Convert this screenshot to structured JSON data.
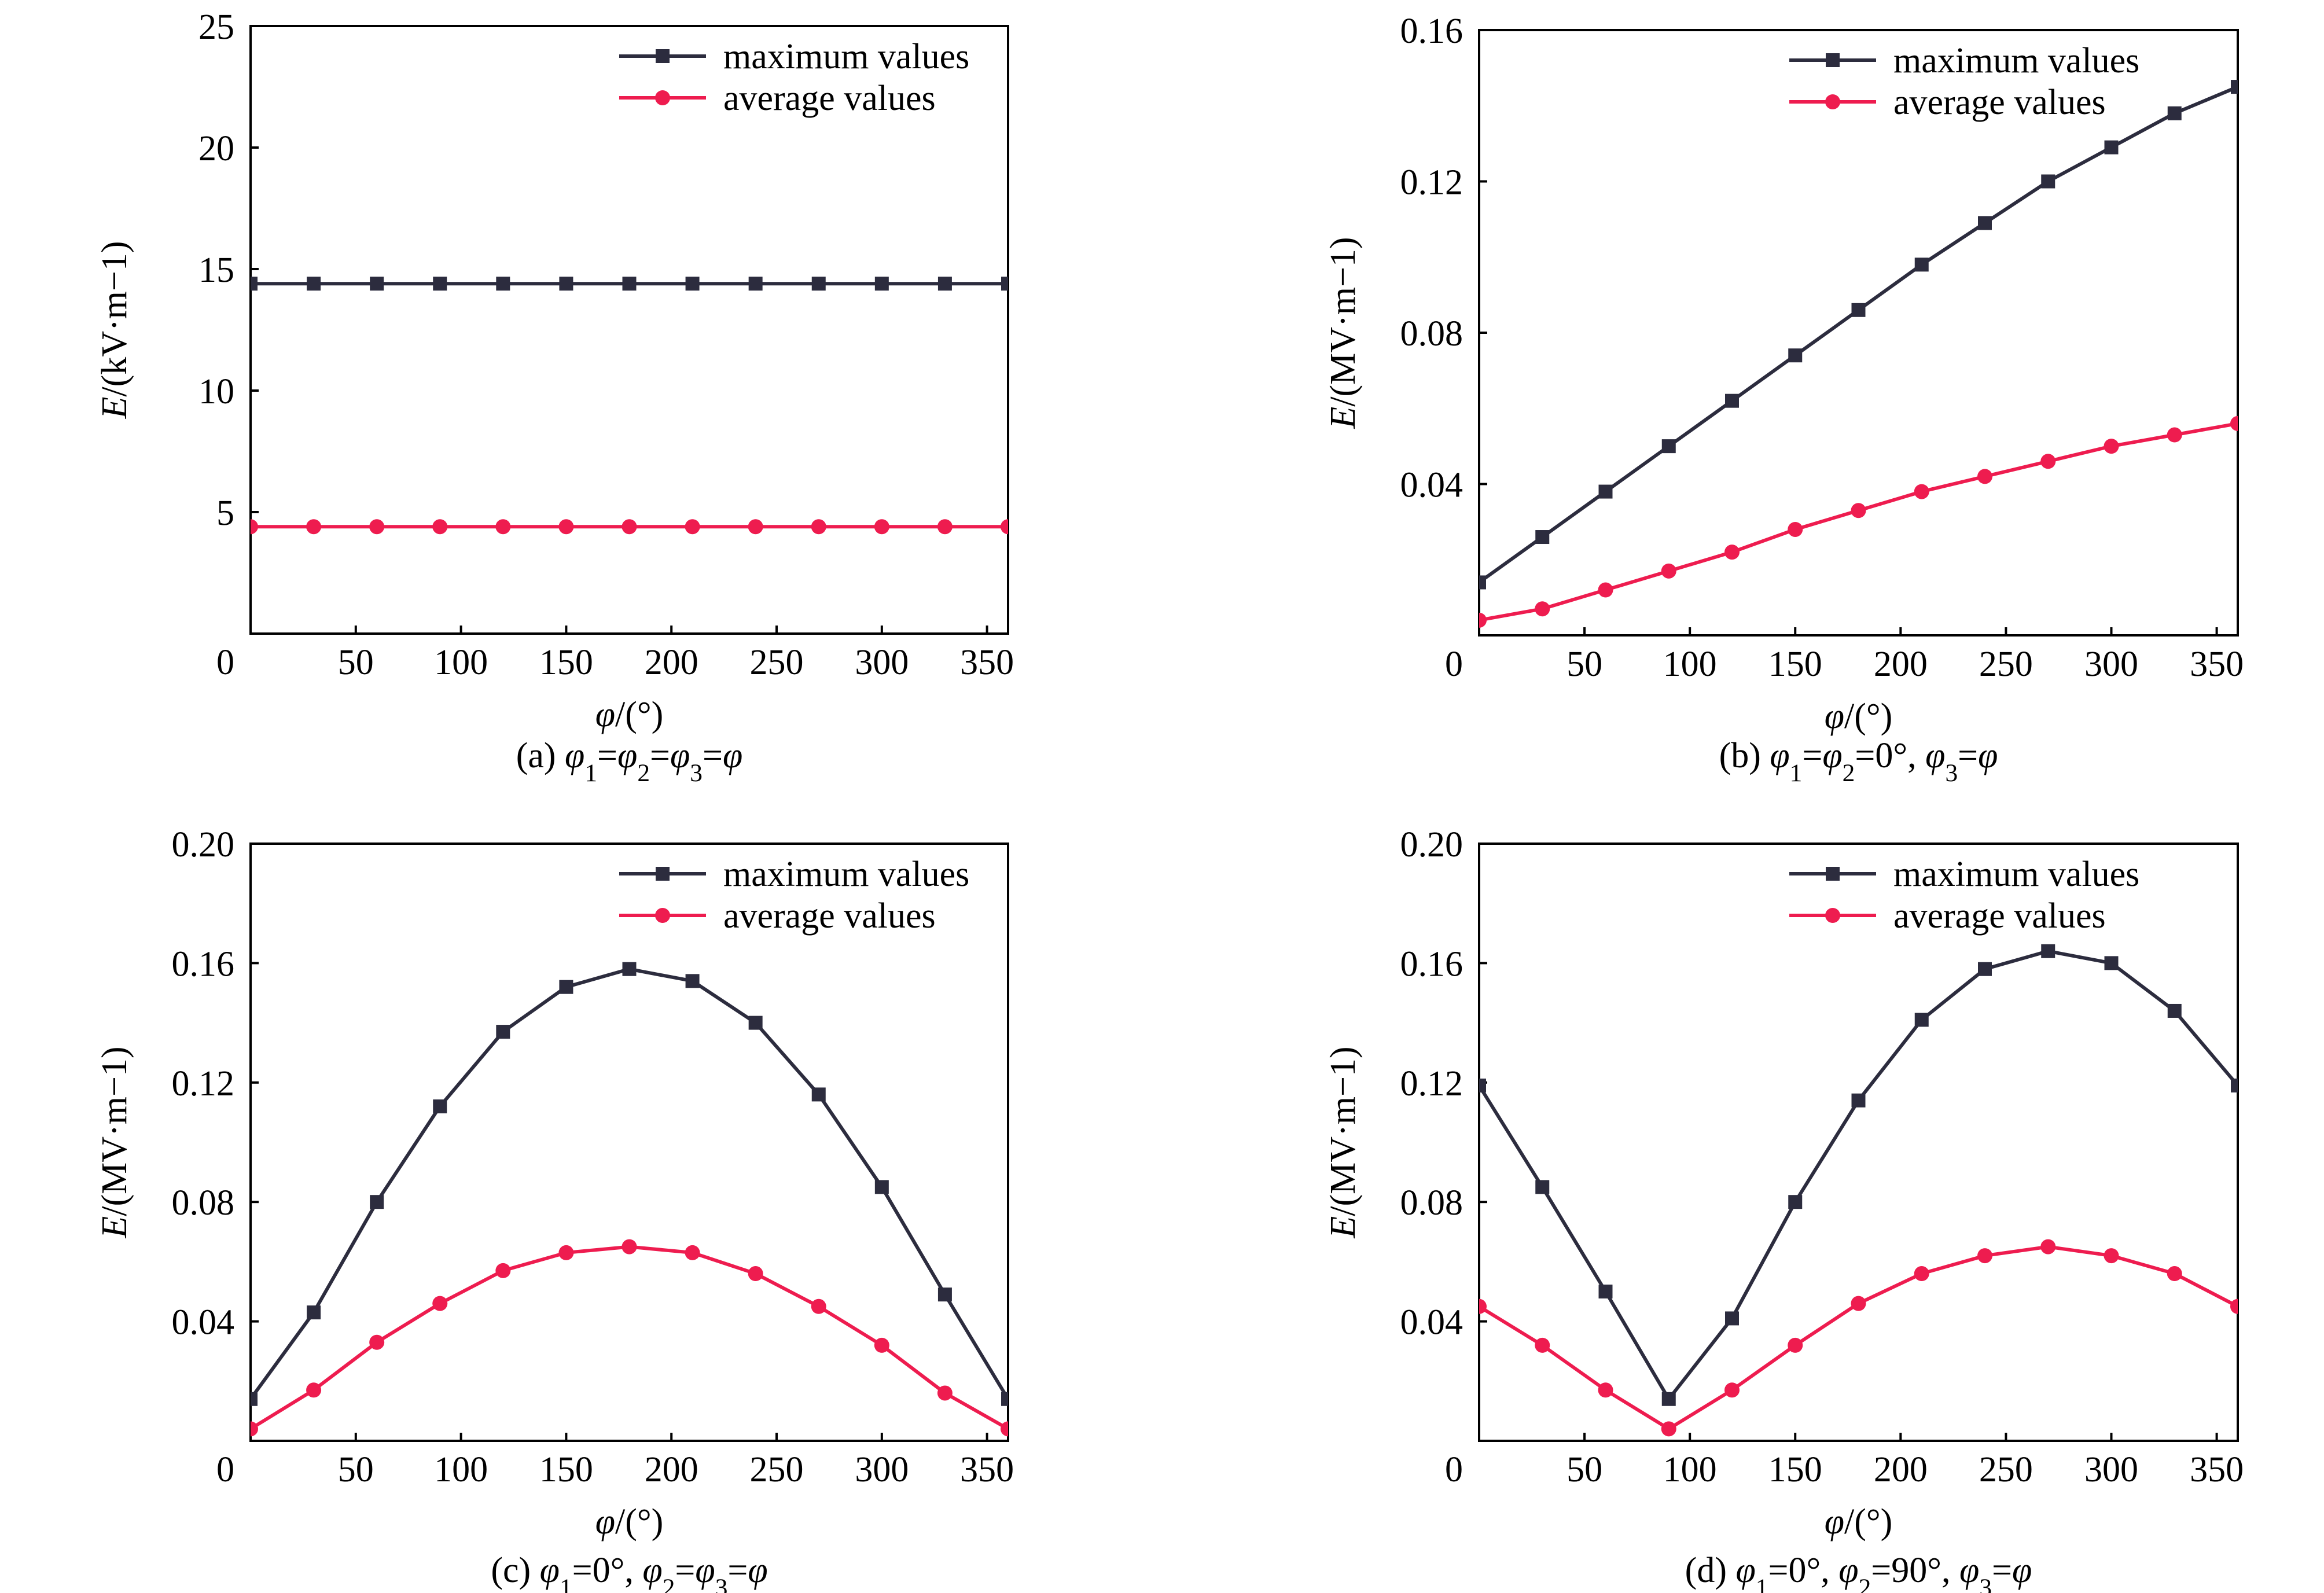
{
  "colors": {
    "maximum": "#2c2c3e",
    "average": "#ee1c4f",
    "axis": "#000000"
  },
  "legend": {
    "maximum": "maximum values",
    "average": "average values"
  },
  "chart_data": [
    {
      "type": "line",
      "caption": "(a) φ1=φ2=φ3=φ",
      "xlabel": "φ/(°)",
      "ylabel": "E/(kV·m−1)",
      "xlim": [
        0,
        360
      ],
      "ylim": [
        0,
        25
      ],
      "xticks": [
        0,
        50,
        100,
        150,
        200,
        250,
        300,
        350
      ],
      "yticks": [
        0,
        5,
        10,
        15,
        20,
        25
      ],
      "yticklabels": [
        "0",
        "5",
        "10",
        "15",
        "20",
        "25"
      ],
      "legend_position": "top-right",
      "x": [
        0,
        30,
        60,
        90,
        120,
        150,
        180,
        210,
        240,
        270,
        300,
        330,
        360
      ],
      "series": [
        {
          "name": "maximum values",
          "marker": "square",
          "values": [
            14.4,
            14.4,
            14.4,
            14.4,
            14.4,
            14.4,
            14.4,
            14.4,
            14.4,
            14.4,
            14.4,
            14.4,
            14.4
          ]
        },
        {
          "name": "average values",
          "marker": "circle",
          "values": [
            4.4,
            4.4,
            4.4,
            4.4,
            4.4,
            4.4,
            4.4,
            4.4,
            4.4,
            4.4,
            4.4,
            4.4,
            4.4
          ]
        }
      ]
    },
    {
      "type": "line",
      "caption": "(b) φ1=φ2=0°, φ3=φ",
      "xlabel": "φ/(°)",
      "ylabel": "E/(MV·m−1)",
      "xlim": [
        0,
        360
      ],
      "ylim": [
        0,
        0.16
      ],
      "xticks": [
        0,
        50,
        100,
        150,
        200,
        250,
        300,
        350
      ],
      "yticks": [
        0,
        0.04,
        0.08,
        0.12,
        0.16
      ],
      "yticklabels": [
        "0",
        "0.04",
        "0.08",
        "0.12",
        "0.16"
      ],
      "legend_position": "top-right",
      "x": [
        0,
        30,
        60,
        90,
        120,
        150,
        180,
        210,
        240,
        270,
        300,
        330,
        360
      ],
      "series": [
        {
          "name": "maximum values",
          "marker": "square",
          "values": [
            0.014,
            0.026,
            0.038,
            0.05,
            0.062,
            0.074,
            0.086,
            0.098,
            0.109,
            0.12,
            0.129,
            0.138,
            0.145
          ]
        },
        {
          "name": "average values",
          "marker": "circle",
          "values": [
            0.004,
            0.007,
            0.012,
            0.017,
            0.022,
            0.028,
            0.033,
            0.038,
            0.042,
            0.046,
            0.05,
            0.053,
            0.056
          ]
        }
      ]
    },
    {
      "type": "line",
      "caption": "(c) φ1=0°, φ2=φ3=φ",
      "xlabel": "φ/(°)",
      "ylabel": "E/(MV·m−1)",
      "xlim": [
        0,
        360
      ],
      "ylim": [
        0,
        0.2
      ],
      "xticks": [
        0,
        50,
        100,
        150,
        200,
        250,
        300,
        350
      ],
      "yticks": [
        0,
        0.04,
        0.08,
        0.12,
        0.16,
        0.2
      ],
      "yticklabels": [
        "0",
        "0.04",
        "0.08",
        "0.12",
        "0.16",
        "0.20"
      ],
      "legend_position": "top-right",
      "x": [
        0,
        30,
        60,
        90,
        120,
        150,
        180,
        210,
        240,
        270,
        300,
        330,
        360
      ],
      "series": [
        {
          "name": "maximum values",
          "marker": "square",
          "values": [
            0.014,
            0.043,
            0.08,
            0.112,
            0.137,
            0.152,
            0.158,
            0.154,
            0.14,
            0.116,
            0.085,
            0.049,
            0.014
          ]
        },
        {
          "name": "average values",
          "marker": "circle",
          "values": [
            0.004,
            0.017,
            0.033,
            0.046,
            0.057,
            0.063,
            0.065,
            0.063,
            0.056,
            0.045,
            0.032,
            0.016,
            0.004
          ]
        }
      ]
    },
    {
      "type": "line",
      "caption": "(d) φ1=0°, φ2=90°, φ3=φ",
      "xlabel": "φ/(°)",
      "ylabel": "E/(MV·m−1)",
      "xlim": [
        0,
        360
      ],
      "ylim": [
        0,
        0.2
      ],
      "xticks": [
        0,
        50,
        100,
        150,
        200,
        250,
        300,
        350
      ],
      "yticks": [
        0,
        0.04,
        0.08,
        0.12,
        0.16,
        0.2
      ],
      "yticklabels": [
        "0",
        "0.04",
        "0.08",
        "0.12",
        "0.16",
        "0.20"
      ],
      "legend_position": "top-right",
      "x": [
        0,
        30,
        60,
        90,
        120,
        150,
        180,
        210,
        240,
        270,
        300,
        330,
        360
      ],
      "series": [
        {
          "name": "maximum values",
          "marker": "square",
          "values": [
            0.119,
            0.085,
            0.05,
            0.014,
            0.041,
            0.08,
            0.114,
            0.141,
            0.158,
            0.164,
            0.16,
            0.144,
            0.119
          ]
        },
        {
          "name": "average values",
          "marker": "circle",
          "values": [
            0.045,
            0.032,
            0.017,
            0.004,
            0.017,
            0.032,
            0.046,
            0.056,
            0.062,
            0.065,
            0.062,
            0.056,
            0.045
          ]
        }
      ]
    }
  ]
}
